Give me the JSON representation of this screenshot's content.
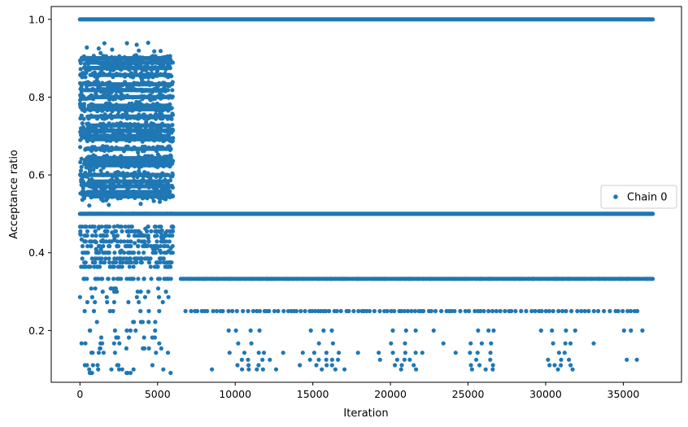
{
  "chart_data": {
    "type": "scatter",
    "xlabel": "Iteration",
    "ylabel": "Acceptance ratio",
    "xlim": [
      -1850,
      38750
    ],
    "ylim": [
      0.067,
      1.033
    ],
    "xticks": [
      0,
      5000,
      10000,
      15000,
      20000,
      25000,
      30000,
      35000
    ],
    "xtick_labels": [
      "0",
      "5000",
      "10000",
      "15000",
      "20000",
      "25000",
      "30000",
      "35000"
    ],
    "yticks": [
      0.2,
      0.4,
      0.6,
      0.8,
      1.0
    ],
    "ytick_labels": [
      "0.2",
      "0.4",
      "0.6",
      "0.8",
      "1.0"
    ],
    "grid": false,
    "legend_position": "center-right",
    "color": "#1f77b4",
    "series": [
      {
        "name": "Chain 0",
        "marker": "dot",
        "bands": [
          {
            "y": 1.0,
            "x_range": [
              0,
              36900
            ],
            "density": "continuous"
          },
          {
            "y": 0.5,
            "x_range": [
              0,
              36900
            ],
            "density": "continuous"
          },
          {
            "y": 0.333,
            "x_range": [
              6500,
              36900
            ],
            "density": "dense"
          },
          {
            "y": 0.25,
            "x_range": [
              6800,
              36000
            ],
            "density": "moderate"
          },
          {
            "y": 0.2,
            "x_range": [
              7500,
              36900
            ],
            "density": "sparse"
          },
          {
            "y": 0.167,
            "x_range": [
              8500,
              34500
            ],
            "density": "sparse"
          },
          {
            "y": 0.143,
            "x_range": [
              9000,
              34500
            ],
            "density": "sparse"
          },
          {
            "y": 0.125,
            "x_range": [
              9000,
              36000
            ],
            "density": "sparse"
          },
          {
            "y": 0.111,
            "x_range": [
              9000,
              34000
            ],
            "density": "sparse"
          },
          {
            "y": 0.1,
            "x_range": [
              8500,
              34000
            ],
            "density": "sparse"
          }
        ],
        "early_phase": {
          "x_range": [
            0,
            6000
          ],
          "y_levels": [
            0.9,
            0.889,
            0.875,
            0.857,
            0.833,
            0.818,
            0.8,
            0.778,
            0.769,
            0.75,
            0.727,
            0.714,
            0.7,
            0.692,
            0.667,
            0.643,
            0.636,
            0.625,
            0.6,
            0.583,
            0.571,
            0.556,
            0.545,
            0.5,
            0.467,
            0.455,
            0.444,
            0.429,
            0.417,
            0.4,
            0.385,
            0.375,
            0.364,
            0.333,
            0.308,
            0.3,
            0.286,
            0.273,
            0.25,
            0.222,
            0.2,
            0.182,
            0.167,
            0.154,
            0.143,
            0.111,
            0.1,
            0.091
          ],
          "y_max": 0.94,
          "y_min": 0.08
        }
      }
    ]
  }
}
